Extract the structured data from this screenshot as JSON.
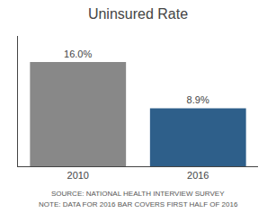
{
  "chart_data": {
    "type": "bar",
    "title": "Uninsured Rate",
    "categories": [
      "2010",
      "2016"
    ],
    "values": [
      16.0,
      8.9
    ],
    "value_labels": [
      "16.0%",
      "8.9%"
    ],
    "data_labels": true,
    "colors": [
      "#888888",
      "#2e5f8a"
    ],
    "ylim": [
      0,
      20
    ],
    "tick_labels": "x",
    "grid": false,
    "annotations": [
      "SOURCE: NATIONAL HEALTH INTERVIEW SURVEY",
      "NOTE: DATA FOR 2016 BAR COVERS FIRST HALF OF 2016"
    ]
  }
}
